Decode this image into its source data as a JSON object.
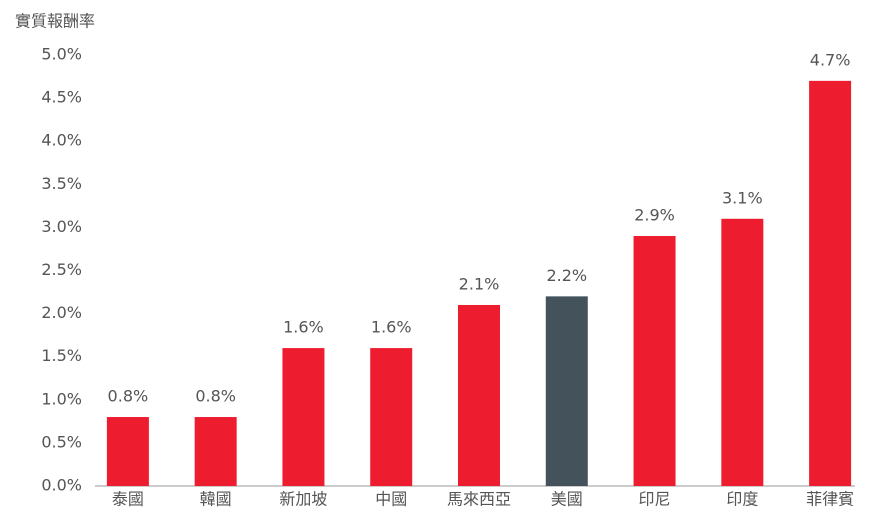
{
  "chart_data": {
    "type": "bar",
    "y_label": "實質報酬率",
    "categories": [
      "泰國",
      "韓國",
      "新加坡",
      "中國",
      "馬來西亞",
      "美國",
      "印尼",
      "印度",
      "菲律賓"
    ],
    "values": [
      0.8,
      0.8,
      1.6,
      1.6,
      2.1,
      2.2,
      2.9,
      3.1,
      4.7
    ],
    "value_labels": [
      "0.8%",
      "0.8%",
      "1.6%",
      "1.6%",
      "2.1%",
      "2.2%",
      "2.9%",
      "3.1%",
      "4.7%"
    ],
    "colors": [
      "#ed1c2e",
      "#ed1c2e",
      "#ed1c2e",
      "#ed1c2e",
      "#ed1c2e",
      "#44525c",
      "#ed1c2e",
      "#ed1c2e",
      "#ed1c2e"
    ],
    "ylim": [
      0,
      5
    ],
    "yticks": [
      {
        "value": 0,
        "label": "0.0%"
      },
      {
        "value": 0.5,
        "label": "0.5%"
      },
      {
        "value": 1,
        "label": "1.0%"
      },
      {
        "value": 1.5,
        "label": "1.5%"
      },
      {
        "value": 2,
        "label": "2.0%"
      },
      {
        "value": 2.5,
        "label": "2.5%"
      },
      {
        "value": 3,
        "label": "3.0%"
      },
      {
        "value": 3.5,
        "label": "3.5%"
      },
      {
        "value": 4,
        "label": "4.0%"
      },
      {
        "value": 4.5,
        "label": "4.5%"
      },
      {
        "value": 5,
        "label": "5.0%"
      }
    ],
    "grid": false
  }
}
